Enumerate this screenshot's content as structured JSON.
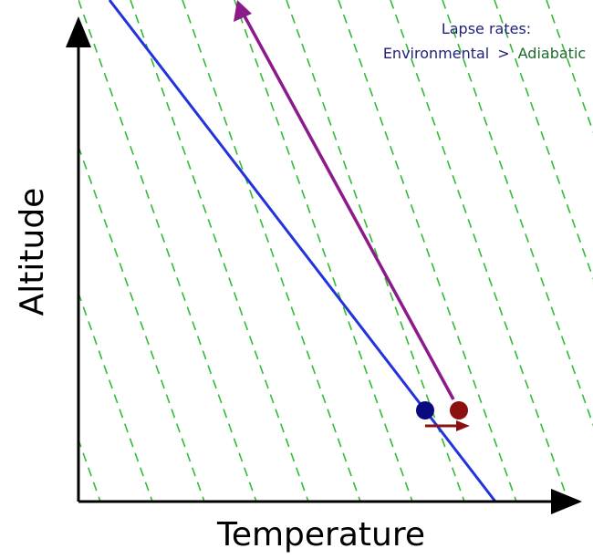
{
  "axes": {
    "x_label": "Temperature",
    "y_label": "Altitude"
  },
  "legend": {
    "title": "Lapse rates:",
    "environmental": "Environmental",
    "comparator": ">",
    "adiabatic": "Adiabatic"
  },
  "colors": {
    "environmental_line": "#2233dd",
    "parcel_path": "#8b1a8b",
    "adiabatic_guides": "#33bb33",
    "environment_point": "#0a0a80",
    "parcel_point": "#8b1010",
    "displacement_arrow": "#8b1010",
    "axes": "#000000"
  }
}
